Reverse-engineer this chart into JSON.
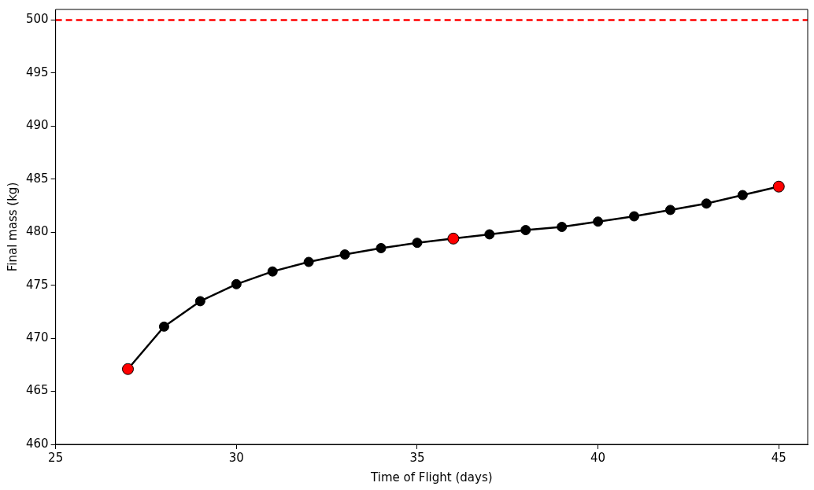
{
  "chart_data": {
    "type": "line",
    "xlabel": "Time of Flight (days)",
    "ylabel": "Final mass (kg)",
    "xlim": [
      25,
      45.8
    ],
    "xticks": [
      25,
      30,
      35,
      40,
      45
    ],
    "ylim": [
      460,
      501
    ],
    "yticks": [
      460,
      465,
      470,
      475,
      480,
      485,
      490,
      495,
      500
    ],
    "grid": false,
    "legend": false,
    "marker": "circle",
    "line_style": "solid",
    "series": [
      {
        "color": "#000000",
        "x": [
          27,
          28,
          29,
          30,
          31,
          32,
          33,
          34,
          35,
          36,
          37,
          38,
          39,
          40,
          41,
          42,
          43,
          44,
          45
        ],
        "values": [
          467.1,
          471.1,
          473.5,
          475.1,
          476.3,
          477.2,
          477.9,
          478.5,
          479.0,
          479.4,
          479.8,
          480.2,
          480.5,
          481.0,
          481.5,
          482.1,
          482.7,
          483.5,
          484.3
        ]
      },
      {
        "type": "scatter",
        "color": "#ff0000",
        "x": [
          27,
          36,
          45
        ],
        "values": [
          467.1,
          479.4,
          484.3
        ]
      }
    ],
    "ref_lines": [
      {
        "axis": "y",
        "value": 500,
        "color": "#ff0000",
        "line_style": "dashed"
      }
    ]
  }
}
